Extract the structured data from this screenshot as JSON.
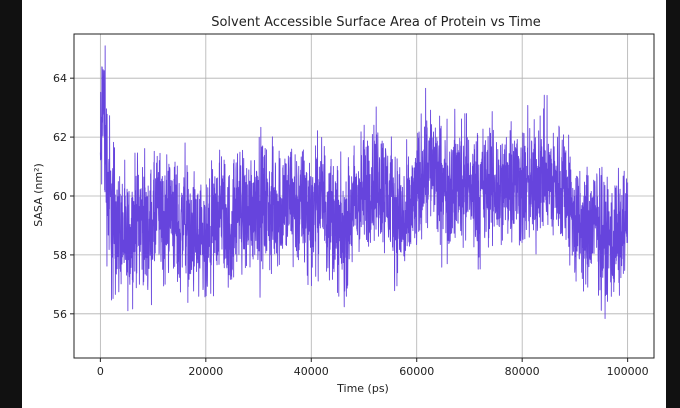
{
  "chart_data": {
    "type": "line",
    "title": "Solvent Accessible Surface Area of Protein vs Time",
    "xlabel": "Time (ps)",
    "ylabel": "SASA (nm²)",
    "xlim": [
      -5000,
      105000
    ],
    "ylim": [
      54.5,
      65.5
    ],
    "xticks": [
      0,
      20000,
      40000,
      60000,
      80000,
      100000
    ],
    "yticks": [
      56,
      58,
      60,
      62,
      64
    ],
    "grid": true,
    "legend": "none",
    "series": [
      {
        "color": "#6644dd",
        "x": [
          0,
          500,
          1000,
          1500,
          2000,
          2500,
          3000,
          3500,
          4000,
          4500,
          5000,
          6000,
          7000,
          8000,
          9000,
          10000,
          11000,
          12000,
          13000,
          14000,
          15000,
          16000,
          17000,
          18000,
          19000,
          20000,
          21000,
          22000,
          23000,
          24000,
          25000,
          26000,
          27000,
          28000,
          29000,
          30000,
          32000,
          34000,
          36000,
          38000,
          40000,
          42000,
          44000,
          45000,
          46000,
          47000,
          48000,
          50000,
          52000,
          54000,
          56000,
          58000,
          60000,
          61000,
          62000,
          63000,
          64000,
          66000,
          68000,
          70000,
          72000,
          74000,
          76000,
          78000,
          80000,
          82000,
          84000,
          86000,
          88000,
          90000,
          92000,
          94000,
          96000,
          98000,
          100000
        ],
        "values": [
          61.0,
          63.5,
          61.5,
          60.3,
          59.5,
          59.0,
          59.2,
          58.8,
          59.0,
          58.5,
          58.2,
          58.8,
          59.4,
          59.2,
          58.6,
          59.0,
          59.6,
          59.0,
          59.5,
          59.4,
          58.7,
          59.5,
          58.4,
          58.7,
          58.2,
          58.0,
          58.6,
          59.2,
          59.6,
          58.9,
          58.8,
          59.8,
          59.5,
          59.3,
          59.7,
          60.0,
          59.4,
          59.7,
          59.8,
          59.6,
          59.5,
          60.0,
          59.3,
          59.0,
          58.5,
          59.0,
          59.6,
          60.1,
          60.5,
          60.2,
          59.5,
          59.0,
          60.0,
          60.8,
          61.3,
          61.0,
          60.4,
          60.2,
          60.6,
          60.3,
          60.1,
          60.4,
          60.2,
          60.7,
          60.3,
          60.2,
          60.8,
          60.3,
          60.5,
          59.0,
          58.8,
          59.1,
          58.4,
          58.6,
          59.0
        ]
      }
    ]
  }
}
